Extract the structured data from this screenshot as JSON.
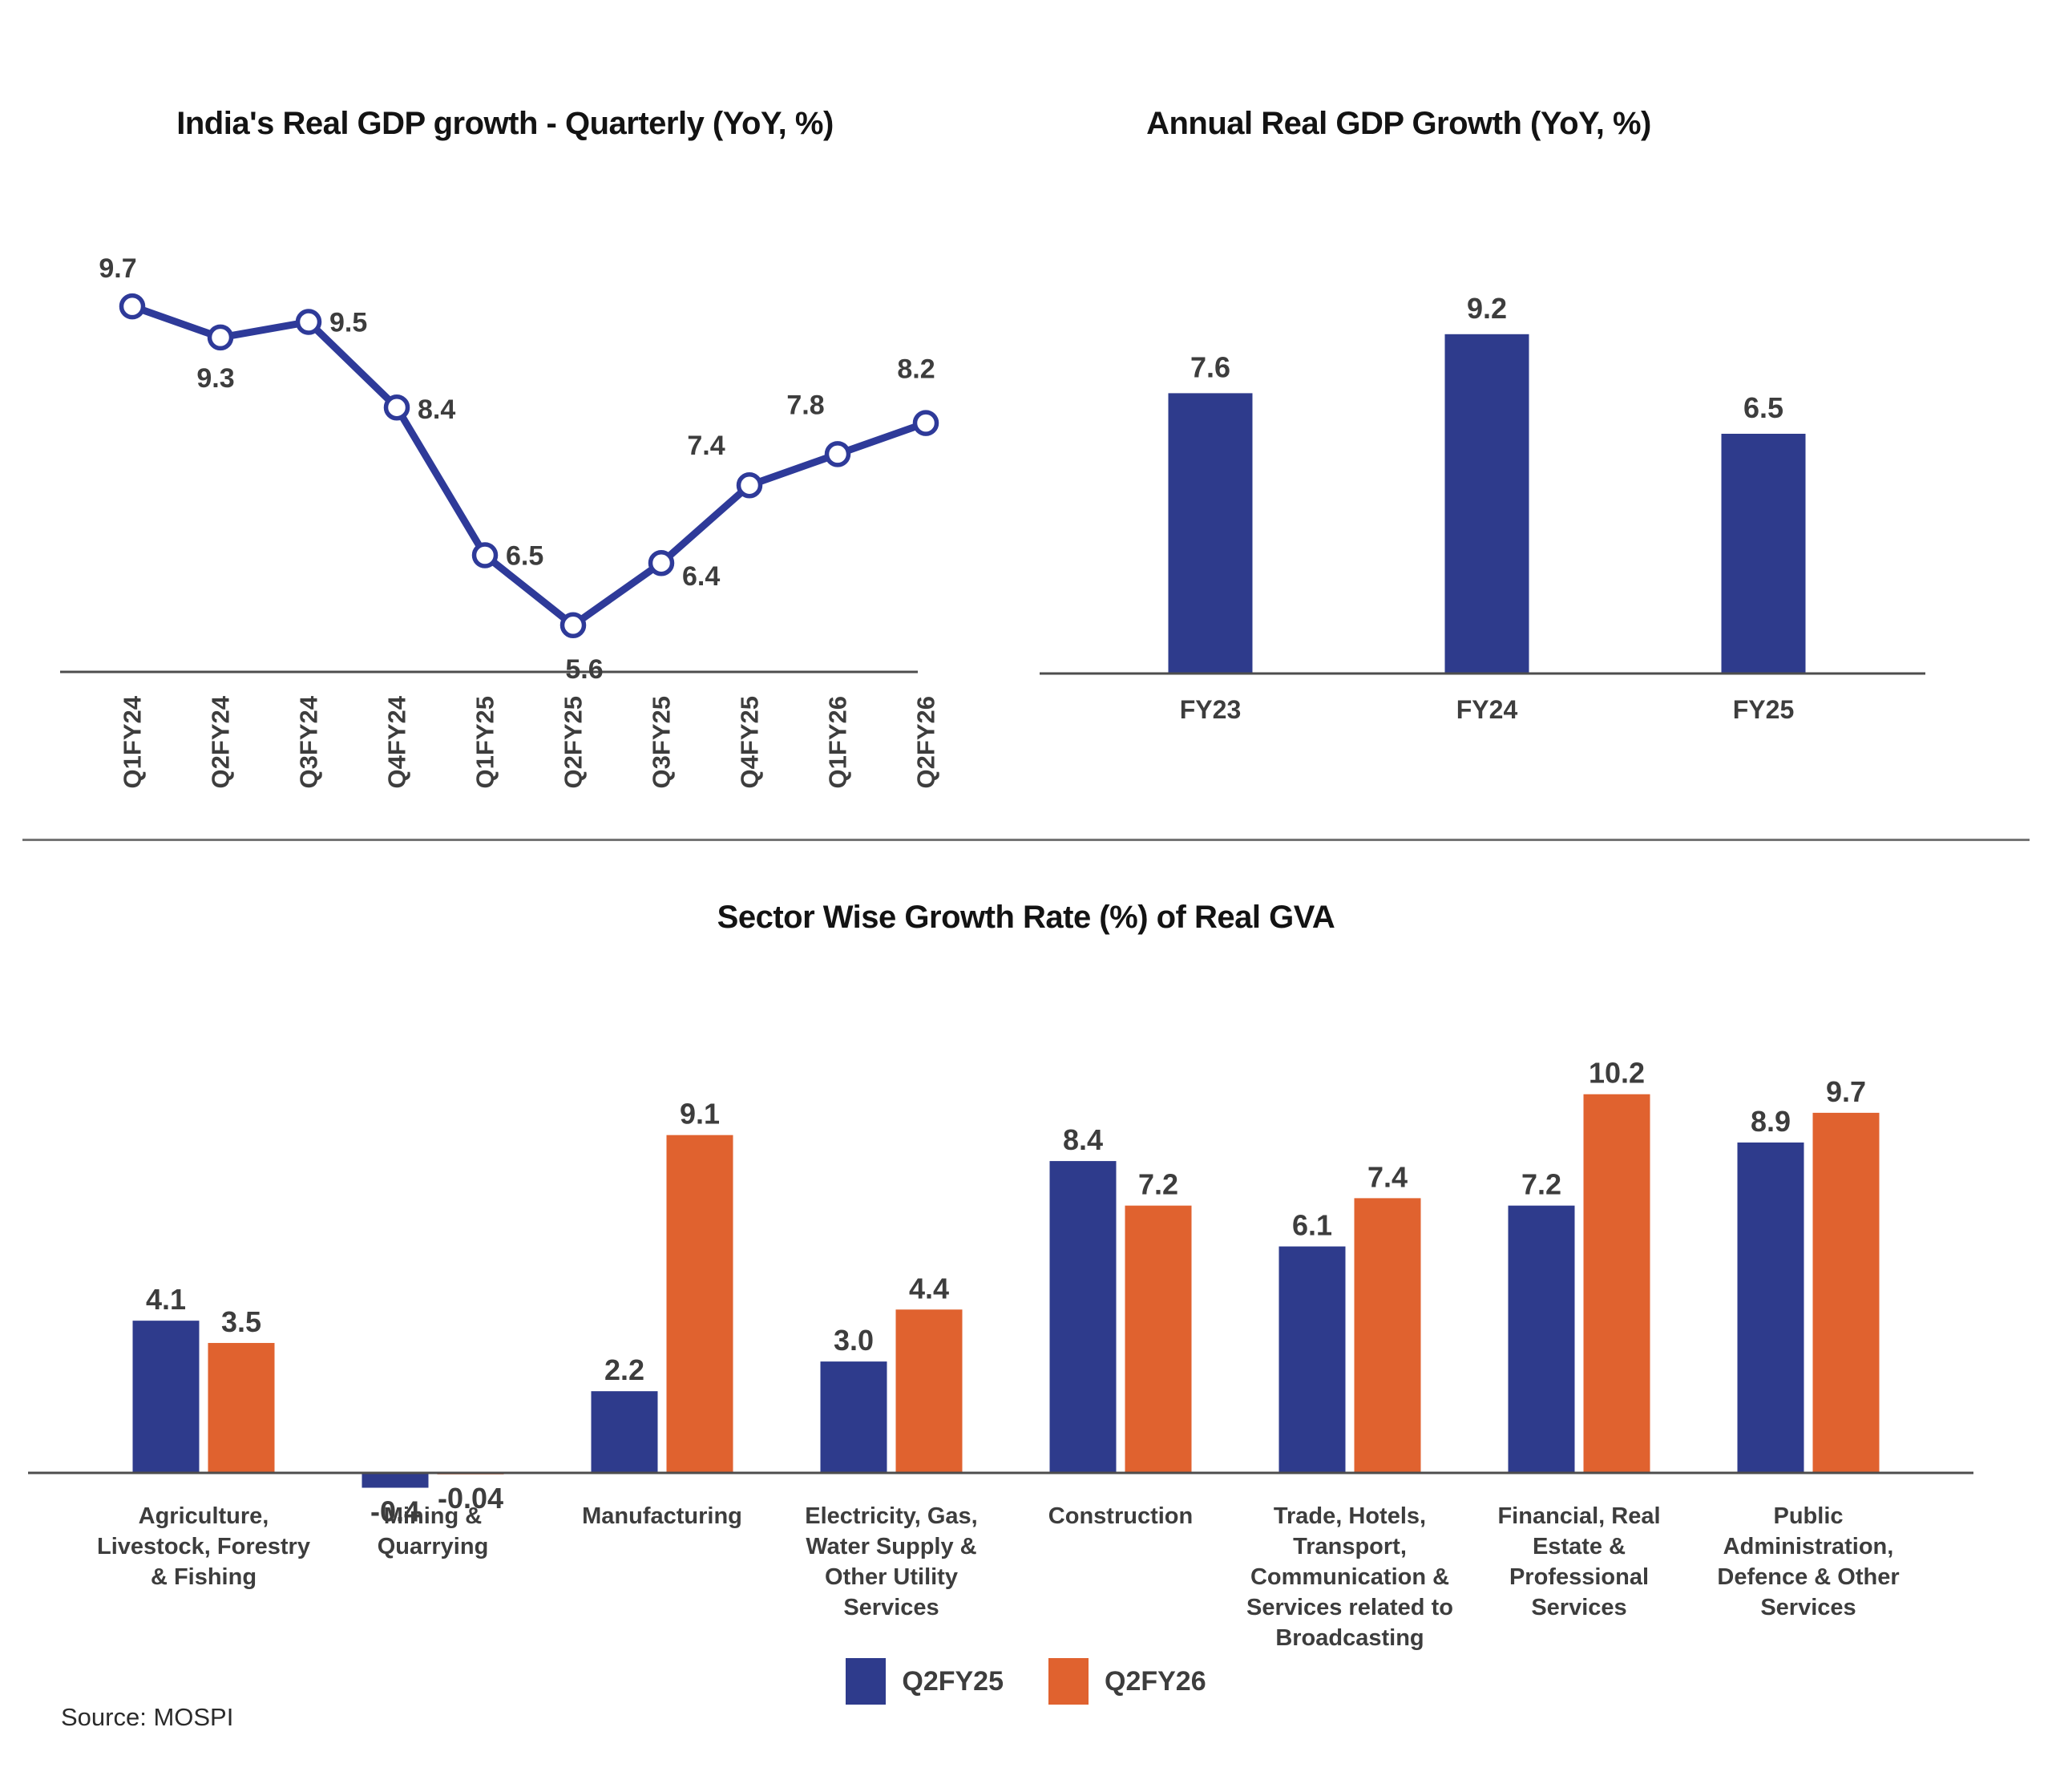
{
  "chart_data": [
    {
      "type": "line",
      "title": "India's Real GDP growth - Quarterly (YoY, %)",
      "x": [
        "Q1FY24",
        "Q2FY24",
        "Q3FY24",
        "Q4FY24",
        "Q1FY25",
        "Q2FY25",
        "Q3FY25",
        "Q4FY25",
        "Q1FY26",
        "Q2FY26"
      ],
      "values": [
        9.7,
        9.3,
        9.5,
        8.4,
        6.5,
        5.6,
        6.4,
        7.4,
        7.8,
        8.2
      ],
      "value_labels": [
        "9.7",
        "9.3",
        "9.5",
        "8.4",
        "6.5",
        "5.6",
        "6.4",
        "7.4",
        "7.8",
        "8.2"
      ],
      "line_color": "#2E3A99",
      "marker": "open-circle",
      "ylim": [
        5,
        10.5
      ],
      "grid": false,
      "legend_position": "none"
    },
    {
      "type": "bar",
      "title": "Annual Real GDP Growth (YoY, %)",
      "categories": [
        "FY23",
        "FY24",
        "FY25"
      ],
      "values": [
        7.6,
        9.2,
        6.5
      ],
      "value_labels": [
        "7.6",
        "9.2",
        "6.5"
      ],
      "bar_color": "#2E3B8C",
      "ylim": [
        0,
        12.2
      ],
      "grid": false,
      "legend_position": "none"
    },
    {
      "type": "grouped-bar",
      "title": "Sector Wise Growth Rate (%) of Real GVA",
      "categories": [
        [
          "Agriculture,",
          "Livestock, Forestry",
          "& Fishing"
        ],
        [
          "Mining &",
          "Quarrying"
        ],
        [
          "Manufacturing"
        ],
        [
          "Electricity, Gas,",
          "Water Supply &",
          "Other Utility",
          "Services"
        ],
        [
          "Construction"
        ],
        [
          "Trade, Hotels,",
          "Transport,",
          "Communication &",
          "Services related to",
          "Broadcasting"
        ],
        [
          "Financial, Real",
          "Estate &",
          "Professional",
          "Services"
        ],
        [
          "Public",
          "Administration,",
          "Defence & Other",
          "Services"
        ]
      ],
      "series": [
        {
          "name": "Q2FY25",
          "color": "#2E3B8C",
          "values": [
            4.1,
            -0.4,
            2.2,
            3.0,
            8.4,
            6.1,
            7.2,
            8.9
          ],
          "value_labels": [
            "4.1",
            "-0.4",
            "2.2",
            "3.0",
            "8.4",
            "6.1",
            "7.2",
            "8.9"
          ]
        },
        {
          "name": "Q2FY26",
          "color": "#E0622F",
          "values": [
            3.5,
            -0.04,
            9.1,
            4.4,
            7.2,
            7.4,
            10.2,
            9.7
          ],
          "value_labels": [
            "3.5",
            "-0.04",
            "9.1",
            "4.4",
            "7.2",
            "7.4",
            "10.2",
            "9.7"
          ]
        }
      ],
      "ylim": [
        -1,
        12.8
      ],
      "grid": false,
      "legend_position": "bottom"
    }
  ],
  "legend": {
    "items": [
      {
        "label": "Q2FY25",
        "color": "#2E3B8C"
      },
      {
        "label": "Q2FY26",
        "color": "#E0622F"
      }
    ]
  },
  "source": "Source: MOSPI",
  "colors": {
    "blue": "#2E3B8C",
    "orange": "#E0622F",
    "line_blue": "#2E3A99",
    "axis": "#4d4d4d",
    "label_gray": "#3d3d3d"
  }
}
